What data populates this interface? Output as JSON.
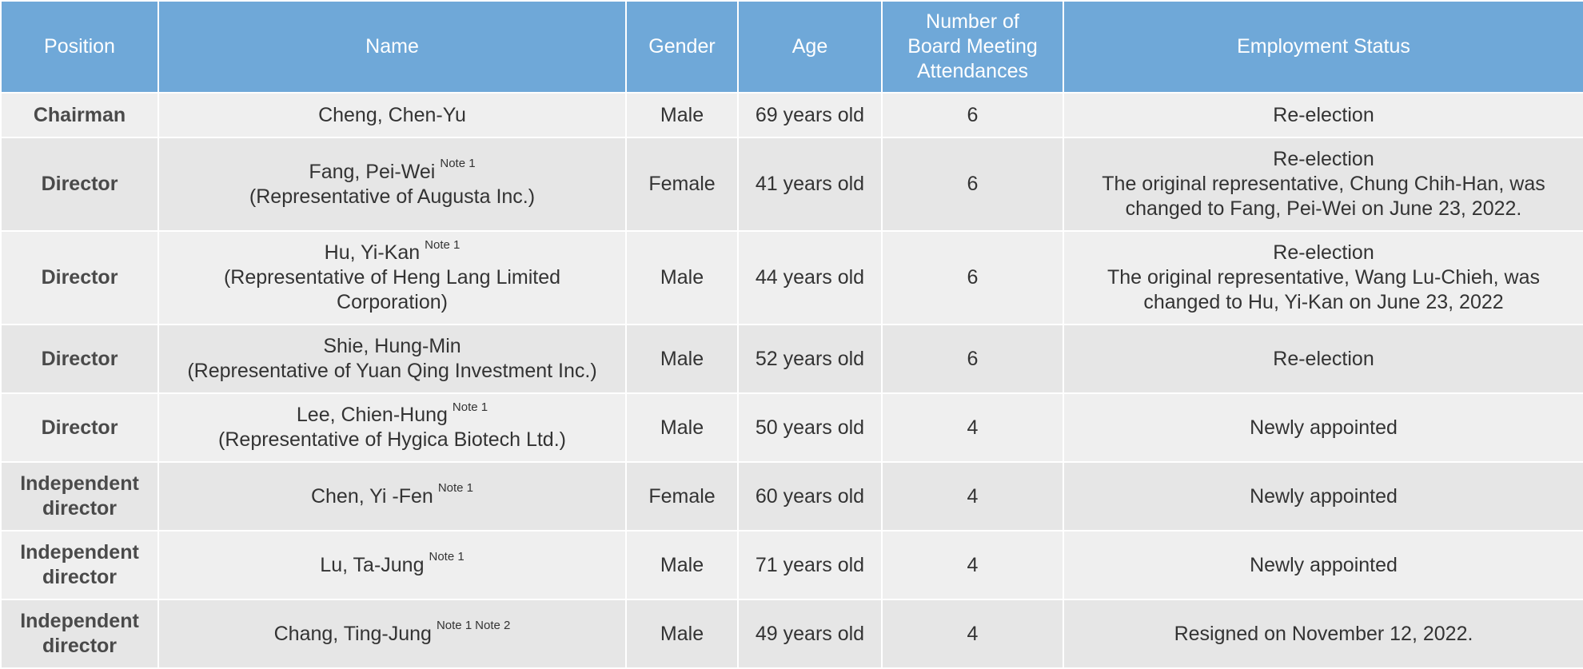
{
  "headers": {
    "position": "Position",
    "name": "Name",
    "gender": "Gender",
    "age": "Age",
    "attendance": "Number of Board Meeting Attendances",
    "status": "Employment Status"
  },
  "rows": [
    {
      "position": "Chairman",
      "name": "Cheng, Chen-Yu",
      "note1": "",
      "note2": "",
      "rep": "",
      "gender": "Male",
      "age": "69 years old",
      "attendance": "6",
      "status_main": "Re-election",
      "status_detail": ""
    },
    {
      "position": "Director",
      "name": "Fang, Pei-Wei",
      "note1": "Note 1",
      "note2": "",
      "rep": "(Representative of Augusta Inc.)",
      "gender": "Female",
      "age": "41 years old",
      "attendance": "6",
      "status_main": "Re-election",
      "status_detail": "The original representative, Chung Chih-Han, was changed to Fang, Pei-Wei on June 23, 2022."
    },
    {
      "position": "Director",
      "name": "Hu, Yi-Kan",
      "note1": "Note 1",
      "note2": "",
      "rep": "(Representative of Heng Lang Limited Corporation)",
      "gender": "Male",
      "age": "44 years old",
      "attendance": "6",
      "status_main": "Re-election",
      "status_detail": "The original representative, Wang Lu-Chieh, was changed to Hu, Yi-Kan on June 23, 2022"
    },
    {
      "position": "Director",
      "name": "Shie, Hung-Min",
      "note1": "",
      "note2": "",
      "rep": "(Representative of Yuan Qing Investment Inc.)",
      "gender": "Male",
      "age": "52 years old",
      "attendance": "6",
      "status_main": "Re-election",
      "status_detail": ""
    },
    {
      "position": "Director",
      "name": "Lee, Chien-Hung",
      "note1": "Note 1",
      "note2": "",
      "rep": "(Representative of Hygica Biotech Ltd.)",
      "gender": "Male",
      "age": "50 years old",
      "attendance": "4",
      "status_main": "Newly appointed",
      "status_detail": ""
    },
    {
      "position": "Independent director",
      "name": "Chen, Yi -Fen",
      "note1": "Note 1",
      "note2": "",
      "rep": "",
      "gender": "Female",
      "age": "60 years old",
      "attendance": "4",
      "status_main": "Newly appointed",
      "status_detail": ""
    },
    {
      "position": "Independent director",
      "name": "Lu, Ta-Jung",
      "note1": "Note 1",
      "note2": "",
      "rep": "",
      "gender": "Male",
      "age": "71 years old",
      "attendance": "4",
      "status_main": "Newly appointed",
      "status_detail": ""
    },
    {
      "position": "Independent director",
      "name": "Chang, Ting-Jung",
      "note1": "Note 1",
      "note2": "Note 2",
      "rep": "",
      "gender": "Male",
      "age": "49 years old",
      "attendance": "4",
      "status_main": "Resigned on November 12, 2022.",
      "status_detail": ""
    }
  ]
}
